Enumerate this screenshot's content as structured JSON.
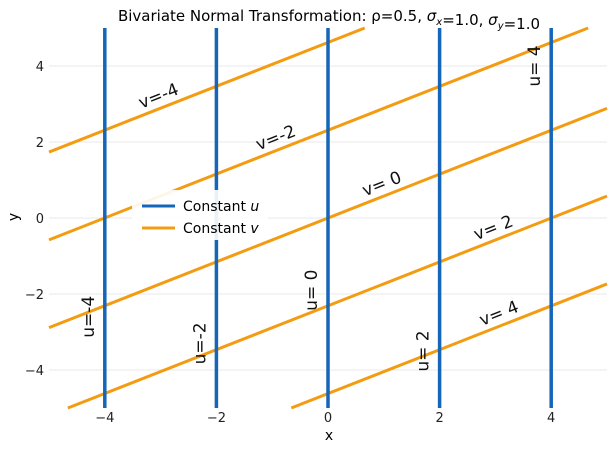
{
  "chart_data": {
    "type": "line",
    "title_parts": [
      {
        "t": "Bivariate Normal Transformation: ρ=0.5, "
      },
      {
        "t": "σ",
        "italic": true
      },
      {
        "t": "x",
        "sub": true,
        "italic": true
      },
      {
        "t": "=1.0, "
      },
      {
        "t": "σ",
        "italic": true
      },
      {
        "t": "y",
        "sub": true,
        "italic": true
      },
      {
        "t": "=1.0"
      }
    ],
    "xlabel": "x",
    "ylabel": "y",
    "xlim": [
      -5,
      5
    ],
    "ylim": [
      -5,
      5
    ],
    "xticks": [
      -4,
      -2,
      0,
      2,
      4
    ],
    "yticks": [
      -4,
      -2,
      0,
      2,
      4
    ],
    "grid": "horizontal",
    "colors": {
      "u": "#1565b8",
      "v": "#f39c12"
    },
    "u_lines": [
      {
        "x": -4,
        "label": "u=-4"
      },
      {
        "x": -2,
        "label": "u=-2"
      },
      {
        "x": 0,
        "label": "u= 0"
      },
      {
        "x": 2,
        "label": "u= 2"
      },
      {
        "x": 4,
        "label": "u= 4"
      }
    ],
    "v_lines": {
      "slope": 0.577,
      "items": [
        {
          "intercept": 4.62,
          "label": "v=-4"
        },
        {
          "intercept": 2.31,
          "label": "v=-2"
        },
        {
          "intercept": 0.0,
          "label": "v= 0"
        },
        {
          "intercept": -2.31,
          "label": "v= 2"
        },
        {
          "intercept": -4.62,
          "label": "v= 4"
        }
      ]
    },
    "legend": {
      "position": "center-left",
      "entries": [
        {
          "series": "u",
          "label": "Constant",
          "var": "u"
        },
        {
          "series": "v",
          "label": "Constant",
          "var": "v"
        }
      ]
    }
  }
}
